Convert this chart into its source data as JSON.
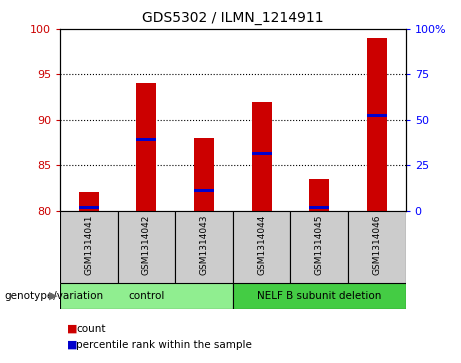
{
  "title": "GDS5302 / ILMN_1214911",
  "samples": [
    "GSM1314041",
    "GSM1314042",
    "GSM1314043",
    "GSM1314044",
    "GSM1314045",
    "GSM1314046"
  ],
  "red_values": [
    82.0,
    94.0,
    88.0,
    92.0,
    83.5,
    99.0
  ],
  "blue_values": [
    80.3,
    87.8,
    82.2,
    86.3,
    80.3,
    90.5
  ],
  "ylim_left": [
    80,
    100
  ],
  "ylim_right": [
    0,
    100
  ],
  "yticks_left": [
    80,
    85,
    90,
    95,
    100
  ],
  "yticks_right": [
    0,
    25,
    50,
    75,
    100
  ],
  "ytick_labels_right": [
    "0",
    "25",
    "50",
    "75",
    "100%"
  ],
  "groups": [
    {
      "label": "control",
      "indices": [
        0,
        1,
        2
      ],
      "color": "#90ee90"
    },
    {
      "label": "NELF B subunit deletion",
      "indices": [
        3,
        4,
        5
      ],
      "color": "#44cc44"
    }
  ],
  "bar_width": 0.35,
  "red_color": "#cc0000",
  "blue_color": "#0000cc",
  "background_plot": "#ffffff",
  "background_label": "#cccccc",
  "legend_items": [
    "count",
    "percentile rank within the sample"
  ],
  "genotype_label": "genotype/variation",
  "grid_yticks": [
    85,
    90,
    95
  ]
}
